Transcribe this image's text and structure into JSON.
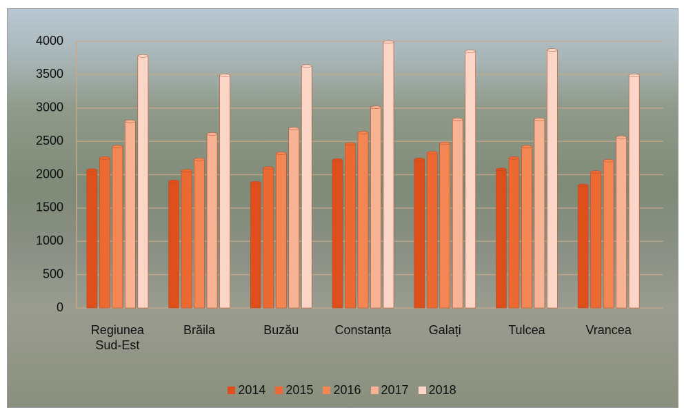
{
  "chart_data": {
    "type": "bar",
    "categories": [
      "Regiunea Sud-Est",
      "Brăila",
      "Buzău",
      "Constanța",
      "Galați",
      "Tulcea",
      "Vrancea"
    ],
    "series": [
      {
        "name": "2014",
        "color": "#de4f1c",
        "values": [
          2070,
          1900,
          1880,
          2220,
          2230,
          2080,
          1840
        ]
      },
      {
        "name": "2015",
        "color": "#ec6a32",
        "values": [
          2250,
          2060,
          2100,
          2460,
          2330,
          2250,
          2040
        ]
      },
      {
        "name": "2016",
        "color": "#f38653",
        "values": [
          2420,
          2230,
          2320,
          2630,
          2470,
          2420,
          2210
        ]
      },
      {
        "name": "2017",
        "color": "#f7b394",
        "values": [
          2800,
          2610,
          2690,
          3010,
          2830,
          2830,
          2560
        ]
      },
      {
        "name": "2018",
        "color": "#fbd6c6",
        "values": [
          3780,
          3490,
          3630,
          3990,
          3850,
          3870,
          3490
        ]
      }
    ],
    "ylim": [
      0,
      4000
    ],
    "yticks": [
      0,
      500,
      1000,
      1500,
      2000,
      2500,
      3000,
      3500,
      4000
    ],
    "grid": true,
    "legend": "bottom"
  }
}
